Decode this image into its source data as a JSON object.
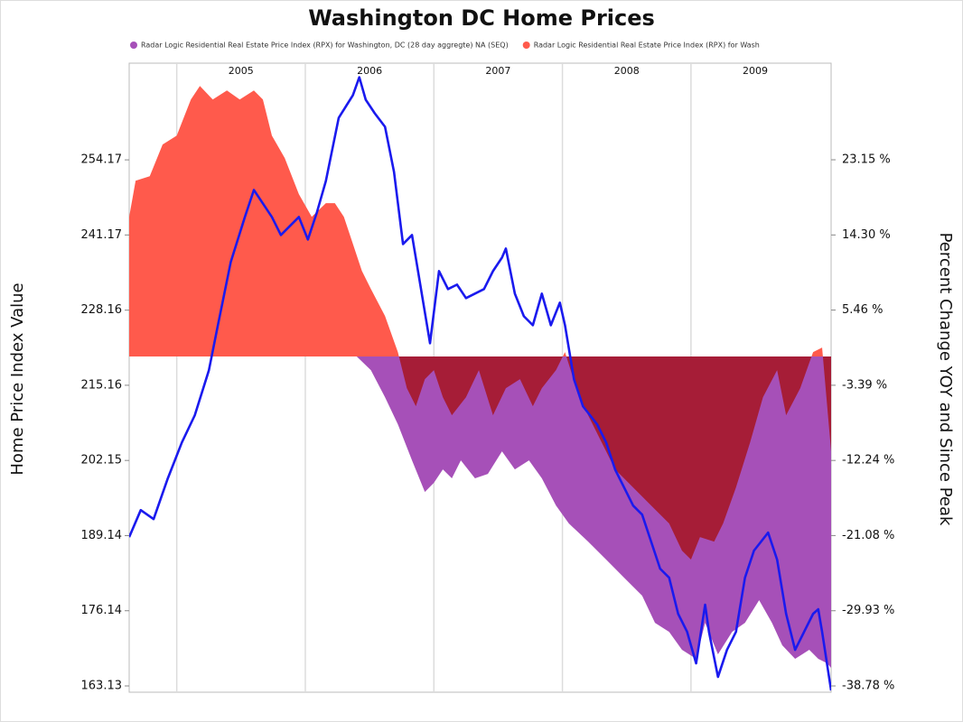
{
  "chart_data": {
    "type": "line",
    "title": "Washington DC Home Prices",
    "y_label": "Home Price Index Value",
    "y2_label": "Percent Change YOY and Since Peak",
    "xlim": [
      2004.63,
      2010.09
    ],
    "xticks": [
      2005,
      2006,
      2007,
      2008,
      2009
    ],
    "ylim": [
      162.04,
      270.9
    ],
    "yticks": [
      163.13,
      176.14,
      189.14,
      202.15,
      215.16,
      228.16,
      241.17,
      254.17
    ],
    "y2lim": [
      -39.52,
      34.52
    ],
    "y2ticks": [
      {
        "value": -38.78,
        "label": "-38.78 %"
      },
      {
        "value": -29.93,
        "label": "-29.93 %"
      },
      {
        "value": -21.08,
        "label": "-21.08 %"
      },
      {
        "value": -12.24,
        "label": "-12.24 %"
      },
      {
        "value": -3.39,
        "label": "-3.39 %"
      },
      {
        "value": 5.46,
        "label": "5.46 %"
      },
      {
        "value": 14.3,
        "label": "14.30 %"
      },
      {
        "value": 23.15,
        "label": "23.15 %"
      }
    ],
    "grid": true,
    "series": [
      {
        "name": "Radar Logic Residential Real Estate Price Index (RPX) for Washington, DC (28 day aggregte) NA (SEQ)",
        "type": "area",
        "axis": "y2",
        "color": "#a650b8",
        "x": [
          2006.4,
          2006.51,
          2006.62,
          2006.72,
          2006.83,
          2006.93,
          2007.0,
          2007.07,
          2007.14,
          2007.21,
          2007.32,
          2007.42,
          2007.53,
          2007.63,
          2007.74,
          2007.84,
          2007.95,
          2008.05,
          2008.2,
          2008.34,
          2008.48,
          2008.62,
          2008.72,
          2008.83,
          2008.93,
          2009.04,
          2009.11,
          2009.21,
          2009.32,
          2009.42,
          2009.53,
          2009.63,
          2009.71,
          2009.81,
          2009.92,
          2009.99,
          2010.06,
          2010.09
        ],
        "values": [
          0,
          -1.61,
          -4.8,
          -7.98,
          -12.23,
          -15.95,
          -14.88,
          -13.29,
          -14.35,
          -12.23,
          -14.35,
          -13.82,
          -11.17,
          -13.29,
          -12.23,
          -14.35,
          -17.54,
          -19.66,
          -21.79,
          -23.91,
          -26.04,
          -28.16,
          -31.35,
          -32.41,
          -34.53,
          -35.59,
          -31.35,
          -35.06,
          -32.41,
          -31.35,
          -28.69,
          -31.35,
          -34.0,
          -35.59,
          -34.53,
          -35.59,
          -36.12,
          -36.66
        ]
      },
      {
        "name": "Radar Logic Residential Real Estate Price Index (RPX) for Wash",
        "type": "area",
        "axis": "y2",
        "color": "#ff5a4c",
        "x": [
          2004.63,
          2004.68,
          2004.79,
          2004.89,
          2005.0,
          2005.11,
          2005.18,
          2005.28,
          2005.39,
          2005.49,
          2005.6,
          2005.67,
          2005.74,
          2005.84,
          2005.95,
          2006.05,
          2006.16,
          2006.23,
          2006.3,
          2006.37,
          2006.44,
          2006.51,
          2006.62,
          2006.72,
          2006.79,
          2006.86,
          2006.93,
          2007.0,
          2007.07,
          2007.14,
          2007.25,
          2007.35,
          2007.46,
          2007.56,
          2007.67,
          2007.77,
          2007.84,
          2007.95,
          2008.02,
          2008.13,
          2008.27,
          2008.41,
          2008.55,
          2008.69,
          2008.83,
          2008.93,
          2009.0,
          2009.07,
          2009.18,
          2009.25,
          2009.35,
          2009.46,
          2009.56,
          2009.67,
          2009.74,
          2009.85,
          2009.95,
          2010.02,
          2010.09
        ],
        "values": [
          16.44,
          20.69,
          21.22,
          24.94,
          26.0,
          30.25,
          31.84,
          30.25,
          31.31,
          30.25,
          31.31,
          30.25,
          26.0,
          23.35,
          19.1,
          16.44,
          18.04,
          18.04,
          16.44,
          13.26,
          10.07,
          7.95,
          4.76,
          0.51,
          -3.73,
          -5.86,
          -2.67,
          -1.61,
          -4.8,
          -6.92,
          -4.8,
          -1.61,
          -6.92,
          -3.73,
          -2.67,
          -5.86,
          -3.73,
          -1.61,
          0.51,
          -4.8,
          -9.04,
          -13.29,
          -15.42,
          -17.54,
          -19.66,
          -22.85,
          -23.91,
          -21.26,
          -21.79,
          -19.66,
          -15.42,
          -10.11,
          -4.8,
          -1.61,
          -6.92,
          -3.73,
          0.51,
          1.05,
          -11.17
        ]
      },
      {
        "type": "line",
        "axis": "y",
        "color": "#1a1aee",
        "x": [
          2004.63,
          2004.72,
          2004.82,
          2004.93,
          2005.04,
          2005.14,
          2005.25,
          2005.32,
          2005.42,
          2005.53,
          2005.6,
          2005.67,
          2005.74,
          2005.81,
          2005.88,
          2005.95,
          2006.02,
          2006.09,
          2006.16,
          2006.26,
          2006.37,
          2006.42,
          2006.47,
          2006.54,
          2006.62,
          2006.69,
          2006.76,
          2006.83,
          2006.9,
          2006.97,
          2007.04,
          2007.11,
          2007.18,
          2007.25,
          2007.32,
          2007.39,
          2007.46,
          2007.53,
          2007.56,
          2007.63,
          2007.7,
          2007.77,
          2007.84,
          2007.91,
          2007.98,
          2008.02,
          2008.09,
          2008.16,
          2008.27,
          2008.34,
          2008.41,
          2008.48,
          2008.55,
          2008.62,
          2008.69,
          2008.76,
          2008.83,
          2008.9,
          2008.97,
          2009.04,
          2009.11,
          2009.14,
          2009.21,
          2009.28,
          2009.35,
          2009.42,
          2009.49,
          2009.6,
          2009.67,
          2009.74,
          2009.81,
          2009.88,
          2009.95,
          2009.99,
          2010.02,
          2010.09
        ],
        "values": [
          188.88,
          193.56,
          192.0,
          199.02,
          205.27,
          209.95,
          217.75,
          225.55,
          236.48,
          244.28,
          248.96,
          246.62,
          244.28,
          241.16,
          242.72,
          244.28,
          240.38,
          245.06,
          250.52,
          261.45,
          265.35,
          268.47,
          264.57,
          262.23,
          259.89,
          252.08,
          239.6,
          241.16,
          231.8,
          222.43,
          234.92,
          231.8,
          232.58,
          230.24,
          231.02,
          231.8,
          234.92,
          237.26,
          238.82,
          231.02,
          227.11,
          225.55,
          231.02,
          225.55,
          229.46,
          225.55,
          216.19,
          211.51,
          208.39,
          205.27,
          200.58,
          197.46,
          194.34,
          192.78,
          188.1,
          183.42,
          181.86,
          175.61,
          172.49,
          167.03,
          177.18,
          172.49,
          164.69,
          169.37,
          172.49,
          181.86,
          186.54,
          189.66,
          184.98,
          175.61,
          169.37,
          172.49,
          175.61,
          176.4,
          172.49,
          162.35
        ]
      }
    ]
  }
}
